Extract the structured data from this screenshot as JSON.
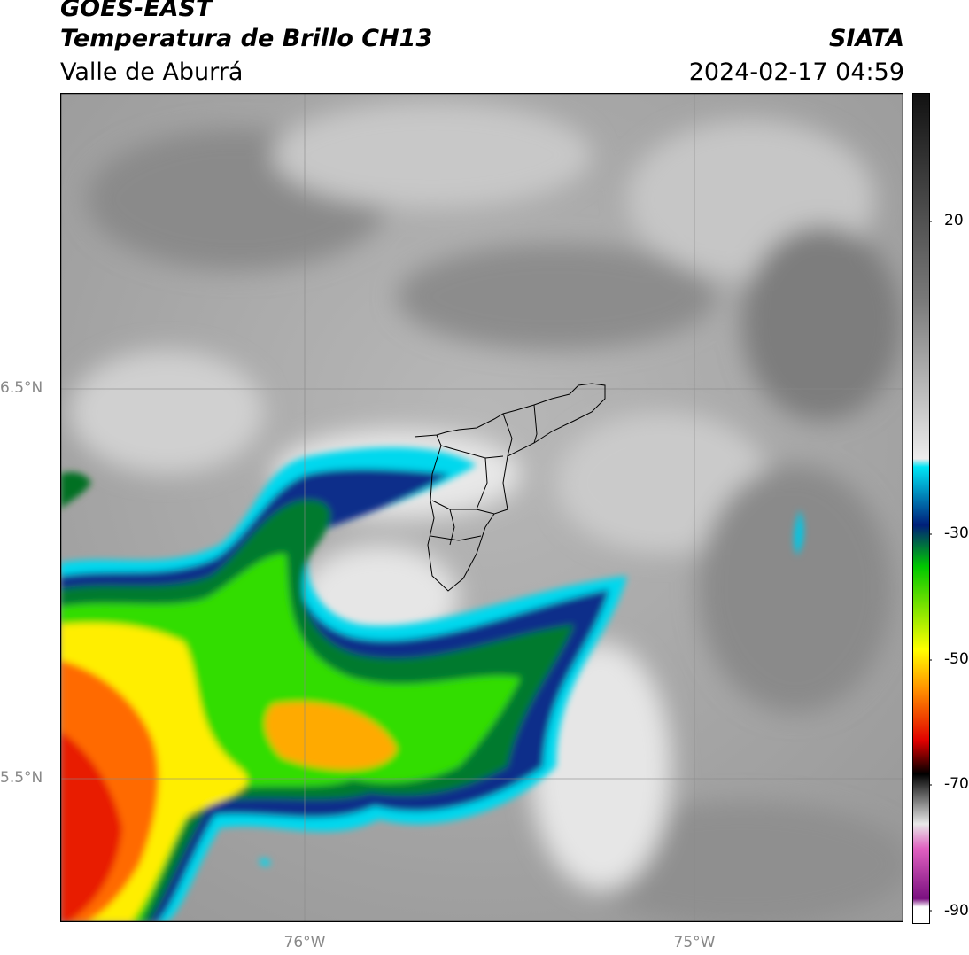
{
  "header": {
    "satellite": "GOES-EAST",
    "product": "Temperatura de Brillo CH13",
    "region": "Valle de Aburrá",
    "agency": "SIATA",
    "timestamp": "2024-02-17 04:59"
  },
  "map": {
    "lat_labels": [
      "6.5°N",
      "5.5°N"
    ],
    "lon_labels": [
      "76°W",
      "75°W"
    ],
    "gridlines": true,
    "basemap": "grayscale brightness temperature field with colored cold cloud tops",
    "overlay": "municipal boundaries of Valle de Aburrá"
  },
  "colorbar": {
    "ticks": [
      "20",
      "-30",
      "-50",
      "-70",
      "-90"
    ],
    "colors": {
      "warm": "#111111",
      "neutral": "#ececec",
      "cyan": "#00e5f5",
      "navy": "#001f7a",
      "green": "#00c800",
      "yellow": "#ffff00",
      "orange": "#ff8c00",
      "red": "#e00000",
      "magenta": "#b02fb0"
    }
  }
}
